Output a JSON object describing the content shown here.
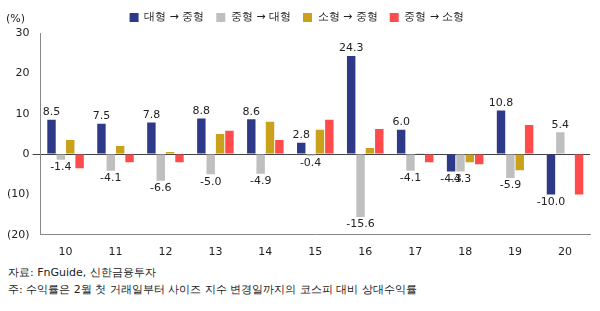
{
  "chart_data": {
    "type": "bar",
    "ylabel": "(%)",
    "categories": [
      "10",
      "11",
      "12",
      "13",
      "14",
      "15",
      "16",
      "17",
      "18",
      "19",
      "20"
    ],
    "series": [
      {
        "name": "대형 → 중형",
        "color": "#2E3A87",
        "data_labels": true,
        "values": [
          8.5,
          7.5,
          7.8,
          8.8,
          8.6,
          2.8,
          24.3,
          6.0,
          -4.3,
          10.8,
          -10.0
        ],
        "value_labels": [
          "8.5",
          "7.5",
          "7.8",
          "8.8",
          "8.6",
          "2.8",
          "24.3",
          "6.0",
          "-4.3",
          "10.8",
          "-10.0"
        ]
      },
      {
        "name": "중형 → 대형",
        "color": "#BFBFBF",
        "data_labels": true,
        "values": [
          -1.4,
          -4.1,
          -6.6,
          -5.0,
          -4.9,
          -0.4,
          -15.6,
          -4.1,
          -4.3,
          -5.9,
          5.4
        ],
        "value_labels": [
          "-1.4",
          "-4.1",
          "-6.6",
          "-5.0",
          "-4.9",
          "-0.4",
          "-15.6",
          "-4.1",
          "-4.3",
          "-5.9",
          "5.4"
        ]
      },
      {
        "name": "소형 → 중형",
        "color": "#C9A11B",
        "data_labels": false,
        "values": [
          3.5,
          2.0,
          0.5,
          5.0,
          8.0,
          6.0,
          1.5,
          0.2,
          -2.0,
          -4.0,
          0.0
        ]
      },
      {
        "name": "중형 → 소형",
        "color": "#FF4B4B",
        "data_labels": false,
        "values": [
          -3.5,
          -2.0,
          -2.0,
          5.8,
          3.5,
          8.5,
          6.2,
          -2.0,
          -2.5,
          7.2,
          -10.0
        ]
      }
    ],
    "ylim": [
      -20,
      30
    ],
    "yticks": [
      {
        "value": -20,
        "label": "(20)"
      },
      {
        "value": -10,
        "label": "(10)"
      },
      0,
      10,
      20,
      30
    ],
    "grid": false,
    "legend": "top",
    "source": "자료: FnGuide, 신한금융투자",
    "note": "주: 수익률은 2월 첫 거래일부터 사이즈 지수 변경일까지의 코스피 대비 상대수익률"
  }
}
